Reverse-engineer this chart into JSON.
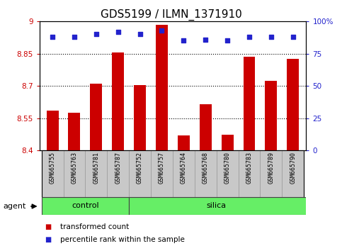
{
  "title": "GDS5199 / ILMN_1371910",
  "samples": [
    "GSM665755",
    "GSM665763",
    "GSM665781",
    "GSM665787",
    "GSM665752",
    "GSM665757",
    "GSM665764",
    "GSM665768",
    "GSM665780",
    "GSM665783",
    "GSM665789",
    "GSM665790"
  ],
  "transformed_counts": [
    8.585,
    8.575,
    8.71,
    8.855,
    8.705,
    8.985,
    8.47,
    8.615,
    8.475,
    8.835,
    8.725,
    8.825
  ],
  "percentile_ranks": [
    88,
    88,
    90,
    92,
    90,
    93,
    85,
    86,
    85,
    88,
    88,
    88
  ],
  "bar_bottom": 8.4,
  "ylim_left": [
    8.4,
    9.0
  ],
  "ylim_right": [
    0,
    100
  ],
  "yticks_left": [
    8.4,
    8.55,
    8.7,
    8.85,
    9.0
  ],
  "yticks_right": [
    0,
    25,
    50,
    75,
    100
  ],
  "yticklabels_left": [
    "8.4",
    "8.55",
    "8.7",
    "8.85",
    "9"
  ],
  "yticklabels_right": [
    "0",
    "25",
    "50",
    "75",
    "100%"
  ],
  "control_samples": 4,
  "bar_color": "#cc0000",
  "dot_color": "#2222cc",
  "agent_label": "agent",
  "legend_bar_label": "transformed count",
  "legend_dot_label": "percentile rank within the sample",
  "sample_bg_color": "#c8c8c8",
  "group_bg_color": "#66ee66",
  "plot_bg": "#ffffff",
  "title_fontsize": 11,
  "tick_fontsize": 7.5,
  "sample_fontsize": 6,
  "group_fontsize": 8,
  "legend_fontsize": 7.5
}
